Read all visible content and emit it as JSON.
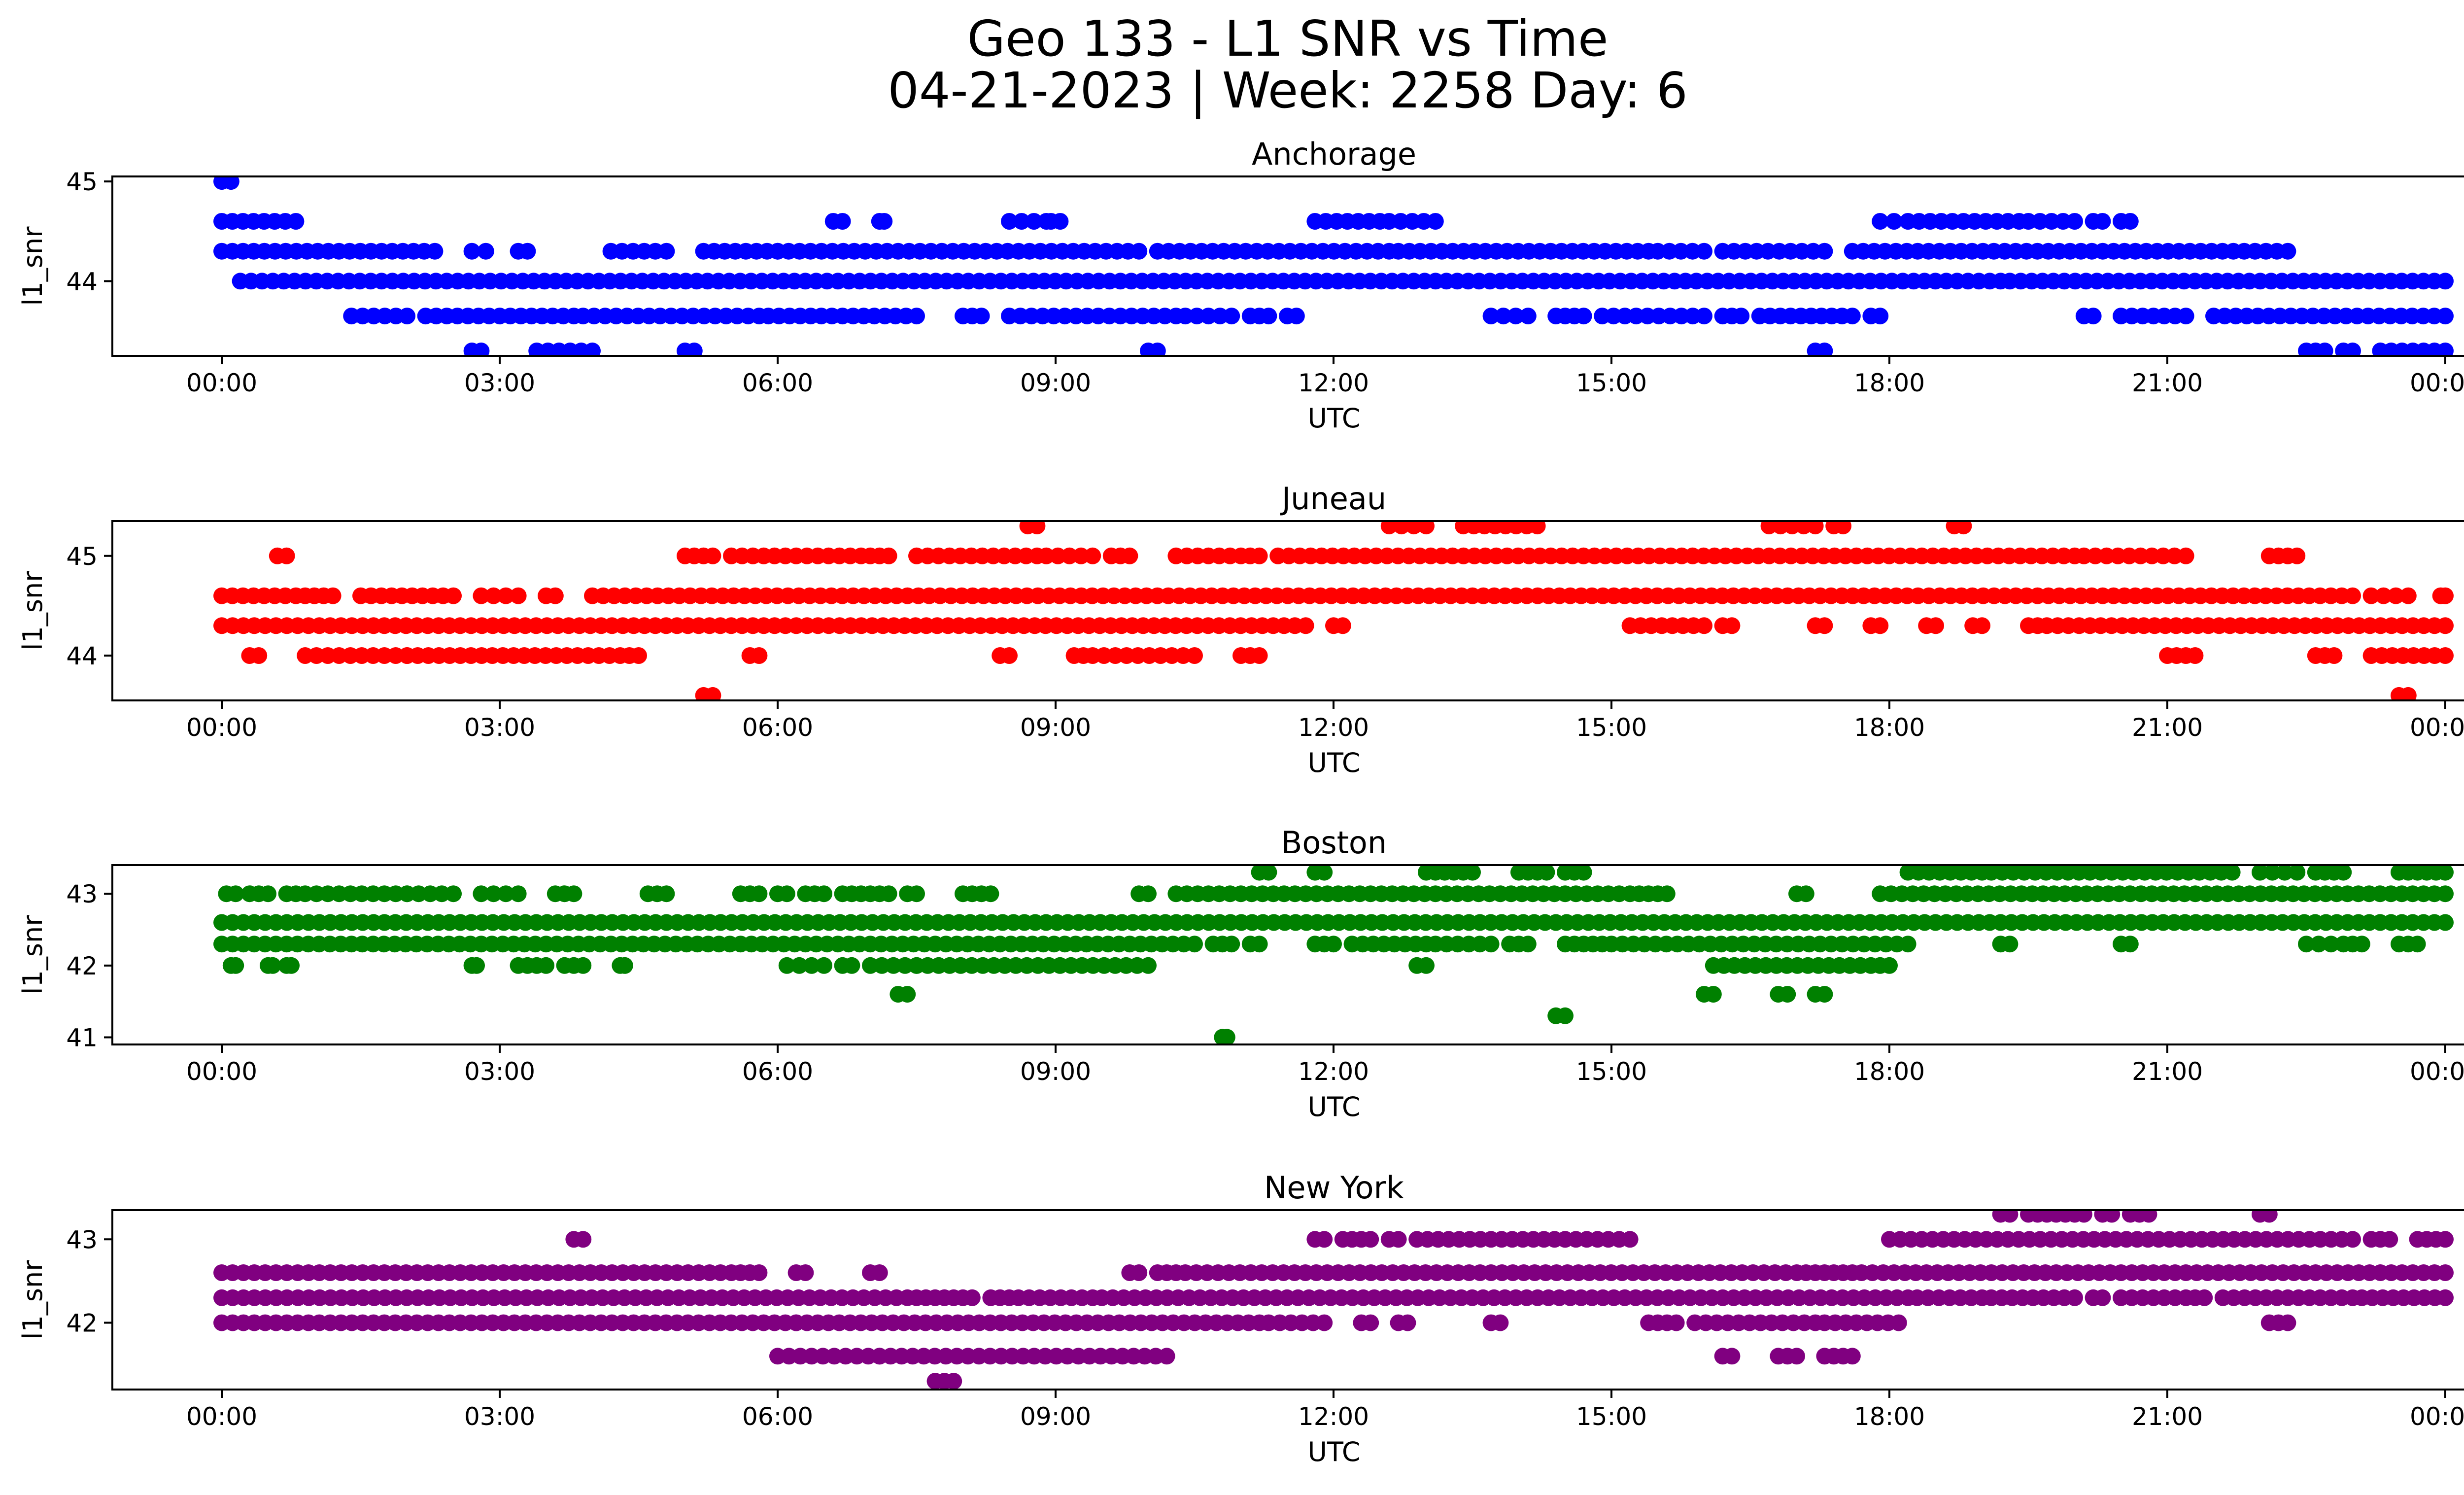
{
  "title_line1": "Geo 133 - L1 SNR vs Time",
  "title_line2": "04-21-2023 | Week: 2258 Day: 6",
  "chart_data": [
    {
      "type": "scatter",
      "title": "Anchorage",
      "xlabel": "UTC",
      "ylabel": "l1_snr",
      "color": "#0000ff",
      "xlim": [
        "00:00",
        "24:00"
      ],
      "xticks": [
        "00:00",
        "03:00",
        "06:00",
        "09:00",
        "12:00",
        "15:00",
        "18:00",
        "21:00",
        "00:00"
      ],
      "ylim": [
        43.25,
        45.05
      ],
      "yticks": [
        44,
        45
      ],
      "bands": [
        {
          "y": 45.0,
          "ranges": [
            [
              0.0,
              0.1
            ]
          ]
        },
        {
          "y": 44.6,
          "ranges": [
            [
              0.0,
              0.8
            ],
            [
              6.6,
              6.7
            ],
            [
              7.1,
              7.15
            ],
            [
              8.5,
              8.9
            ],
            [
              8.95,
              9.05
            ],
            [
              11.8,
              12.5
            ],
            [
              12.6,
              13.1
            ],
            [
              17.9,
              18.05
            ],
            [
              18.2,
              19.4
            ],
            [
              19.5,
              20.0
            ],
            [
              20.2,
              20.3
            ],
            [
              20.5,
              20.6
            ]
          ]
        },
        {
          "y": 44.3,
          "ranges": [
            [
              0.0,
              2.3
            ],
            [
              2.7,
              2.85
            ],
            [
              3.2,
              3.3
            ],
            [
              4.2,
              4.8
            ],
            [
              5.2,
              6.0
            ],
            [
              6.0,
              9.9
            ],
            [
              10.1,
              12.6
            ],
            [
              12.7,
              15.4
            ],
            [
              15.5,
              16.0
            ],
            [
              16.2,
              17.3
            ],
            [
              17.6,
              22.3
            ]
          ]
        },
        {
          "y": 44.0,
          "ranges": [
            [
              0.2,
              19.2
            ],
            [
              19.3,
              24.0
            ]
          ]
        },
        {
          "y": 43.65,
          "ranges": [
            [
              1.4,
              2.0
            ],
            [
              2.2,
              3.8
            ],
            [
              3.9,
              5.8
            ],
            [
              5.9,
              7.5
            ],
            [
              8.0,
              8.2
            ],
            [
              8.5,
              10.3
            ],
            [
              10.4,
              10.9
            ],
            [
              11.1,
              11.3
            ],
            [
              11.5,
              11.6
            ],
            [
              13.7,
              14.1
            ],
            [
              14.4,
              14.7
            ],
            [
              14.9,
              16.0
            ],
            [
              16.2,
              16.4
            ],
            [
              16.6,
              17.6
            ],
            [
              17.8,
              17.9
            ],
            [
              20.1,
              20.2
            ],
            [
              20.5,
              21.2
            ],
            [
              21.5,
              24.0
            ]
          ]
        },
        {
          "y": 43.3,
          "ranges": [
            [
              2.7,
              2.8
            ],
            [
              3.4,
              4.0
            ],
            [
              5.0,
              5.1
            ],
            [
              10.0,
              10.1
            ],
            [
              17.2,
              17.3
            ],
            [
              22.5,
              22.7
            ],
            [
              22.9,
              23.0
            ],
            [
              23.3,
              24.0
            ]
          ]
        }
      ]
    },
    {
      "type": "scatter",
      "title": "Juneau",
      "xlabel": "UTC",
      "ylabel": "l1_snr",
      "color": "#ff0000",
      "xlim": [
        "00:00",
        "24:00"
      ],
      "xticks": [
        "00:00",
        "03:00",
        "06:00",
        "09:00",
        "12:00",
        "15:00",
        "18:00",
        "21:00",
        "00:00"
      ],
      "ylim": [
        43.55,
        45.35
      ],
      "yticks": [
        44,
        45
      ],
      "bands": [
        {
          "y": 45.3,
          "ranges": [
            [
              8.7,
              8.8
            ],
            [
              12.6,
              13.0
            ],
            [
              13.4,
              14.2
            ],
            [
              16.7,
              17.2
            ],
            [
              17.4,
              17.5
            ],
            [
              18.7,
              18.8
            ]
          ]
        },
        {
          "y": 45.0,
          "ranges": [
            [
              0.6,
              0.7
            ],
            [
              5.0,
              5.3
            ],
            [
              5.5,
              6.9
            ],
            [
              7.0,
              7.2
            ],
            [
              7.5,
              8.8
            ],
            [
              8.9,
              9.4
            ],
            [
              9.6,
              9.8
            ],
            [
              10.3,
              11.0
            ],
            [
              11.1,
              11.2
            ],
            [
              11.4,
              20.0
            ],
            [
              20.1,
              21.2
            ],
            [
              22.1,
              22.4
            ]
          ]
        },
        {
          "y": 44.6,
          "ranges": [
            [
              0.0,
              0.8
            ],
            [
              0.9,
              1.2
            ],
            [
              1.5,
              2.5
            ],
            [
              2.8,
              3.2
            ],
            [
              3.5,
              3.6
            ],
            [
              4.0,
              23.0
            ],
            [
              23.2,
              23.6
            ],
            [
              23.95,
              24.0
            ]
          ]
        },
        {
          "y": 44.3,
          "ranges": [
            [
              0.0,
              11.7
            ],
            [
              12.0,
              12.1
            ],
            [
              15.2,
              16.0
            ],
            [
              16.2,
              16.3
            ],
            [
              17.2,
              17.3
            ],
            [
              17.8,
              17.9
            ],
            [
              18.4,
              18.5
            ],
            [
              18.9,
              19.0
            ],
            [
              19.5,
              19.6
            ],
            [
              19.7,
              24.0
            ]
          ]
        },
        {
          "y": 44.0,
          "ranges": [
            [
              0.3,
              0.4
            ],
            [
              0.9,
              2.0
            ],
            [
              2.0,
              4.3
            ],
            [
              4.4,
              4.5
            ],
            [
              5.7,
              5.8
            ],
            [
              8.4,
              8.5
            ],
            [
              9.2,
              9.3
            ],
            [
              9.4,
              10.5
            ],
            [
              11.0,
              11.2
            ],
            [
              21.0,
              21.3
            ],
            [
              22.6,
              22.8
            ],
            [
              23.2,
              24.0
            ]
          ]
        },
        {
          "y": 43.6,
          "ranges": [
            [
              5.2,
              5.3
            ],
            [
              23.5,
              23.6
            ]
          ]
        }
      ]
    },
    {
      "type": "scatter",
      "title": "Boston",
      "xlabel": "UTC",
      "ylabel": "l1_snr",
      "color": "#008000",
      "xlim": [
        "00:00",
        "24:00"
      ],
      "xticks": [
        "00:00",
        "03:00",
        "06:00",
        "09:00",
        "12:00",
        "15:00",
        "18:00",
        "21:00",
        "00:00"
      ],
      "ylim": [
        40.9,
        43.4
      ],
      "yticks": [
        41,
        42,
        43
      ],
      "bands": [
        {
          "y": 43.3,
          "ranges": [
            [
              11.2,
              11.3
            ],
            [
              11.8,
              11.9
            ],
            [
              13.0,
              13.3
            ],
            [
              13.4,
              13.5
            ],
            [
              14.0,
              14.3
            ],
            [
              14.5,
              14.7
            ],
            [
              18.2,
              19.0
            ],
            [
              19.1,
              21.7
            ],
            [
              22.0,
              22.4
            ],
            [
              22.6,
              22.9
            ],
            [
              23.5,
              23.8
            ],
            [
              23.9,
              24.0
            ]
          ]
        },
        {
          "y": 43.0,
          "ranges": [
            [
              0.05,
              0.15
            ],
            [
              0.3,
              0.5
            ],
            [
              0.7,
              0.8
            ],
            [
              0.9,
              2.0
            ],
            [
              2.0,
              2.5
            ],
            [
              2.8,
              3.2
            ],
            [
              3.6,
              3.8
            ],
            [
              4.6,
              4.8
            ],
            [
              5.6,
              5.8
            ],
            [
              6.0,
              6.1
            ],
            [
              6.3,
              6.5
            ],
            [
              6.7,
              7.0
            ],
            [
              7.1,
              7.2
            ],
            [
              7.4,
              7.5
            ],
            [
              8.0,
              8.3
            ],
            [
              9.9,
              10.0
            ],
            [
              10.3,
              15.2
            ],
            [
              15.3,
              15.6
            ],
            [
              17.0,
              17.1
            ],
            [
              17.9,
              24.0
            ]
          ]
        },
        {
          "y": 42.6,
          "ranges": [
            [
              0.0,
              24.0
            ]
          ]
        },
        {
          "y": 42.3,
          "ranges": [
            [
              0.0,
              10.5
            ],
            [
              10.7,
              10.9
            ],
            [
              11.1,
              11.2
            ],
            [
              11.8,
              12.0
            ],
            [
              12.2,
              13.0
            ],
            [
              13.1,
              13.7
            ],
            [
              13.9,
              14.1
            ],
            [
              14.5,
              14.7
            ],
            [
              14.8,
              14.9
            ],
            [
              15.0,
              18.2
            ],
            [
              19.2,
              19.3
            ],
            [
              20.5,
              20.6
            ],
            [
              22.5,
              22.9
            ],
            [
              23.0,
              23.1
            ],
            [
              23.5,
              23.7
            ]
          ]
        },
        {
          "y": 42.0,
          "ranges": [
            [
              0.1,
              0.15
            ],
            [
              0.5,
              0.55
            ],
            [
              0.7,
              0.75
            ],
            [
              2.7,
              2.75
            ],
            [
              3.2,
              3.5
            ],
            [
              3.7,
              3.9
            ],
            [
              4.3,
              4.35
            ],
            [
              6.1,
              6.5
            ],
            [
              6.7,
              6.8
            ],
            [
              7.0,
              7.5
            ],
            [
              7.5,
              10.0
            ],
            [
              12.9,
              13.0
            ],
            [
              16.1,
              17.8
            ],
            [
              17.9,
              18.0
            ]
          ]
        },
        {
          "y": 41.6,
          "ranges": [
            [
              7.3,
              7.4
            ],
            [
              16.0,
              16.1
            ],
            [
              16.8,
              16.9
            ],
            [
              17.2,
              17.3
            ]
          ]
        },
        {
          "y": 41.3,
          "ranges": [
            [
              14.4,
              14.5
            ]
          ]
        },
        {
          "y": 41.0,
          "ranges": [
            [
              10.8,
              10.85
            ]
          ]
        }
      ]
    },
    {
      "type": "scatter",
      "title": "New York",
      "xlabel": "UTC",
      "ylabel": "l1_snr",
      "color": "#800080",
      "xlim": [
        "00:00",
        "24:00"
      ],
      "xticks": [
        "00:00",
        "03:00",
        "06:00",
        "09:00",
        "12:00",
        "15:00",
        "18:00",
        "21:00",
        "00:00"
      ],
      "ylim": [
        41.2,
        43.35
      ],
      "yticks": [
        42,
        43
      ],
      "bands": [
        {
          "y": 43.3,
          "ranges": [
            [
              19.2,
              19.3
            ],
            [
              19.5,
              19.6
            ],
            [
              19.7,
              19.8
            ],
            [
              19.9,
              20.1
            ],
            [
              20.3,
              20.4
            ],
            [
              20.6,
              20.8
            ],
            [
              22.0,
              22.1
            ]
          ]
        },
        {
          "y": 43.0,
          "ranges": [
            [
              3.8,
              3.9
            ],
            [
              11.8,
              11.9
            ],
            [
              12.1,
              12.4
            ],
            [
              12.6,
              12.7
            ],
            [
              12.9,
              14.5
            ],
            [
              14.5,
              15.2
            ],
            [
              18.0,
              23.0
            ],
            [
              23.2,
              23.4
            ],
            [
              23.7,
              24.0
            ]
          ]
        },
        {
          "y": 42.6,
          "ranges": [
            [
              0.0,
              5.5
            ],
            [
              5.6,
              5.8
            ],
            [
              6.2,
              6.3
            ],
            [
              7.0,
              7.1
            ],
            [
              9.8,
              9.9
            ],
            [
              10.1,
              10.3
            ],
            [
              10.4,
              17.0
            ],
            [
              17.1,
              17.3
            ],
            [
              17.4,
              17.6
            ],
            [
              17.7,
              24.0
            ]
          ]
        },
        {
          "y": 42.3,
          "ranges": [
            [
              0.0,
              7.4
            ],
            [
              7.5,
              7.8
            ],
            [
              7.9,
              8.1
            ],
            [
              8.3,
              8.5
            ],
            [
              8.6,
              9.4
            ],
            [
              9.5,
              18.2
            ],
            [
              18.3,
              19.0
            ],
            [
              19.1,
              20.0
            ],
            [
              20.2,
              20.3
            ],
            [
              20.5,
              21.2
            ],
            [
              21.3,
              21.4
            ],
            [
              21.6,
              23.0
            ],
            [
              23.1,
              24.0
            ]
          ]
        },
        {
          "y": 42.0,
          "ranges": [
            [
              0.0,
              6.2
            ],
            [
              6.2,
              11.2
            ],
            [
              11.3,
              11.9
            ],
            [
              12.3,
              12.4
            ],
            [
              12.7,
              12.8
            ],
            [
              13.7,
              13.8
            ],
            [
              15.4,
              15.7
            ],
            [
              15.9,
              17.2
            ],
            [
              17.3,
              18.1
            ],
            [
              22.1,
              22.3
            ]
          ]
        },
        {
          "y": 41.6,
          "ranges": [
            [
              6.0,
              7.1
            ],
            [
              7.1,
              10.2
            ],
            [
              16.2,
              16.3
            ],
            [
              16.8,
              17.0
            ],
            [
              17.3,
              17.4
            ],
            [
              17.5,
              17.6
            ]
          ]
        },
        {
          "y": 41.3,
          "ranges": [
            [
              7.7,
              7.9
            ]
          ]
        }
      ]
    }
  ]
}
